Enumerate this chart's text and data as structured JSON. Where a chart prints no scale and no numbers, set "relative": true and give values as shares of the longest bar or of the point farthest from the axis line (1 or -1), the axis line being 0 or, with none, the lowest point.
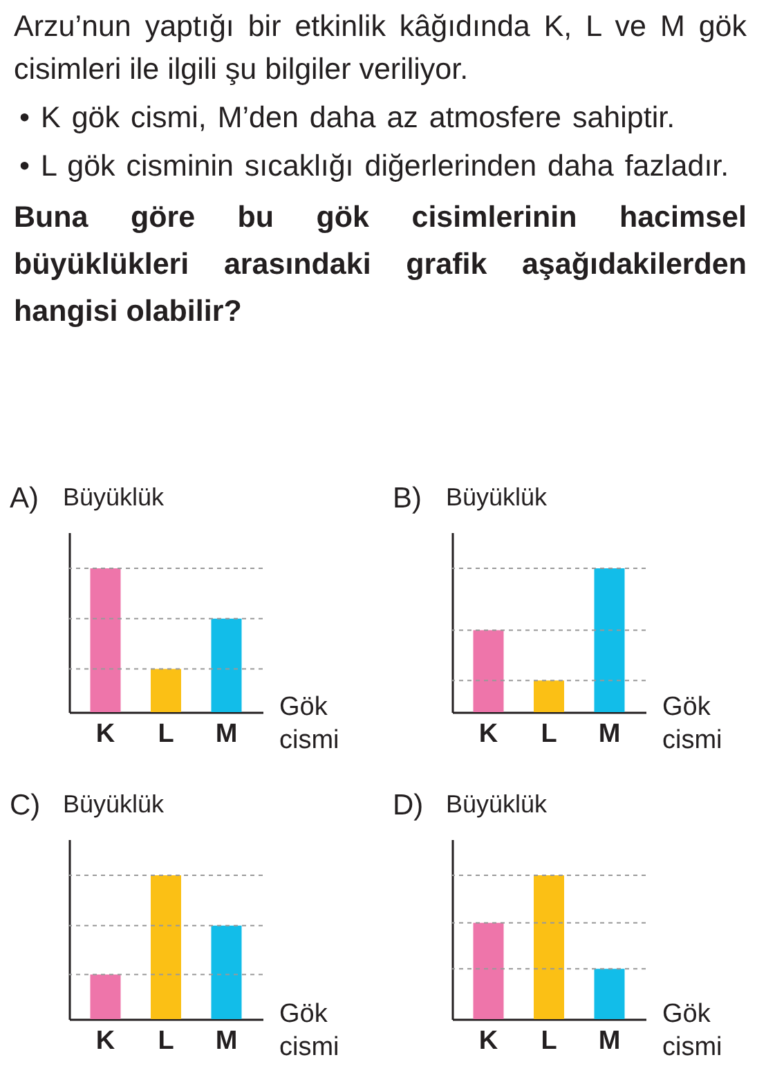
{
  "chart_data": [
    {
      "type": "other",
      "annotations": [
        "Arzu’nun yaptığı bir etkinlik kâğıdında K, L ve M gök cisimleri ile ilgili şu bilgiler veriliyor.",
        "• K gök cismi, M’den daha az atmosfere sahiptir.",
        "• L gök cisminin sıcaklığı diğerlerinden daha fazladır."
      ],
      "title": "Buna göre bu gök cisimlerinin hacimsel büyüklükleri arasındaki grafik aşağıdakilerden hangisi olabilir?"
    },
    {
      "type": "bar",
      "title": "A)",
      "ylabel": "Büyüklük",
      "xlabel": "Gök cismi",
      "relative": true,
      "categories": [
        "K",
        "L",
        "M"
      ],
      "values": [
        1,
        0.3,
        0.65
      ],
      "colors": [
        "#ee75aa",
        "#fbc015",
        "#12bde9"
      ],
      "ref_lines": [
        {
          "axis": "y",
          "value": 1,
          "color": "#999999",
          "line_style": "dashed"
        },
        {
          "axis": "y",
          "value": 0.3,
          "color": "#999999",
          "line_style": "dashed"
        },
        {
          "axis": "y",
          "value": 0.65,
          "color": "#999999",
          "line_style": "dashed"
        }
      ]
    },
    {
      "type": "bar",
      "title": "B)",
      "ylabel": "Büyüklük",
      "xlabel": "Gök cismi",
      "relative": true,
      "categories": [
        "K",
        "L",
        "M"
      ],
      "values": [
        0.57,
        0.22,
        1
      ],
      "colors": [
        "#ee75aa",
        "#fbc015",
        "#12bde9"
      ],
      "ref_lines": [
        {
          "axis": "y",
          "value": 1,
          "color": "#999999",
          "line_style": "dashed"
        },
        {
          "axis": "y",
          "value": 0.57,
          "color": "#999999",
          "line_style": "dashed"
        },
        {
          "axis": "y",
          "value": 0.22,
          "color": "#999999",
          "line_style": "dashed"
        }
      ]
    },
    {
      "type": "bar",
      "title": "C)",
      "ylabel": "Büyüklük",
      "xlabel": "Gök cismi",
      "relative": true,
      "categories": [
        "K",
        "L",
        "M"
      ],
      "values": [
        0.31,
        1,
        0.65
      ],
      "colors": [
        "#ee75aa",
        "#fbc015",
        "#12bde9"
      ],
      "ref_lines": [
        {
          "axis": "y",
          "value": 1,
          "color": "#999999",
          "line_style": "dashed"
        },
        {
          "axis": "y",
          "value": 0.65,
          "color": "#999999",
          "line_style": "dashed"
        },
        {
          "axis": "y",
          "value": 0.31,
          "color": "#999999",
          "line_style": "dashed"
        }
      ]
    },
    {
      "type": "bar",
      "title": "D)",
      "ylabel": "Büyüklük",
      "xlabel": "Gök cismi",
      "relative": true,
      "categories": [
        "K",
        "L",
        "M"
      ],
      "values": [
        0.67,
        1,
        0.35
      ],
      "colors": [
        "#ee75aa",
        "#fbc015",
        "#12bde9"
      ],
      "ref_lines": [
        {
          "axis": "y",
          "value": 1,
          "color": "#999999",
          "line_style": "dashed"
        },
        {
          "axis": "y",
          "value": 0.67,
          "color": "#999999",
          "line_style": "dashed"
        },
        {
          "axis": "y",
          "value": 0.35,
          "color": "#999999",
          "line_style": "dashed"
        }
      ]
    }
  ]
}
